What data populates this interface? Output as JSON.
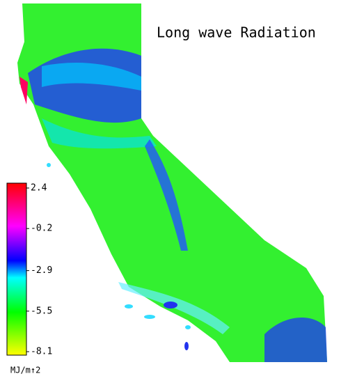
{
  "title": "Long wave Radiation",
  "colorbar": {
    "lim": [
      -8.1,
      2.4
    ],
    "ticks": [
      2.4,
      -0.2,
      -2.9,
      -5.5,
      -8.1
    ],
    "label": "MJ/m↑2"
  }
}
